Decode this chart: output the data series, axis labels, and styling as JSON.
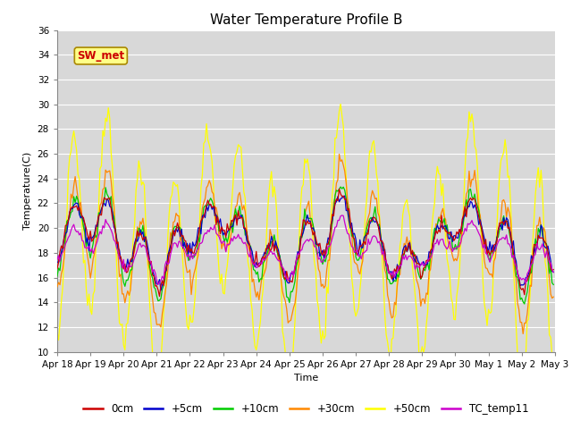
{
  "title": "Water Temperature Profile B",
  "xlabel": "Time",
  "ylabel": "Temperature(C)",
  "ylim": [
    10,
    36
  ],
  "yticks": [
    10,
    12,
    14,
    16,
    18,
    20,
    22,
    24,
    26,
    28,
    30,
    32,
    34,
    36
  ],
  "x_labels": [
    "Apr 18",
    "Apr 19",
    "Apr 20",
    "Apr 21",
    "Apr 22",
    "Apr 23",
    "Apr 24",
    "Apr 25",
    "Apr 26",
    "Apr 27",
    "Apr 28",
    "Apr 29",
    "Apr 30",
    "May 1",
    "May 2",
    "May 3"
  ],
  "series_colors": {
    "0cm": "#cc0000",
    "+5cm": "#0000cc",
    "+10cm": "#00cc00",
    "+30cm": "#ff8800",
    "+50cm": "#ffff00",
    "TC_temp11": "#cc00cc"
  },
  "sw_met_label": "SW_met",
  "sw_met_bg": "#ffff88",
  "sw_met_border": "#aa8800",
  "sw_met_text_color": "#cc0000",
  "plot_bg": "#d8d8d8",
  "grid_color": "#ffffff",
  "title_fontsize": 11,
  "axis_label_fontsize": 8,
  "tick_fontsize": 7.5,
  "legend_fontsize": 8.5
}
